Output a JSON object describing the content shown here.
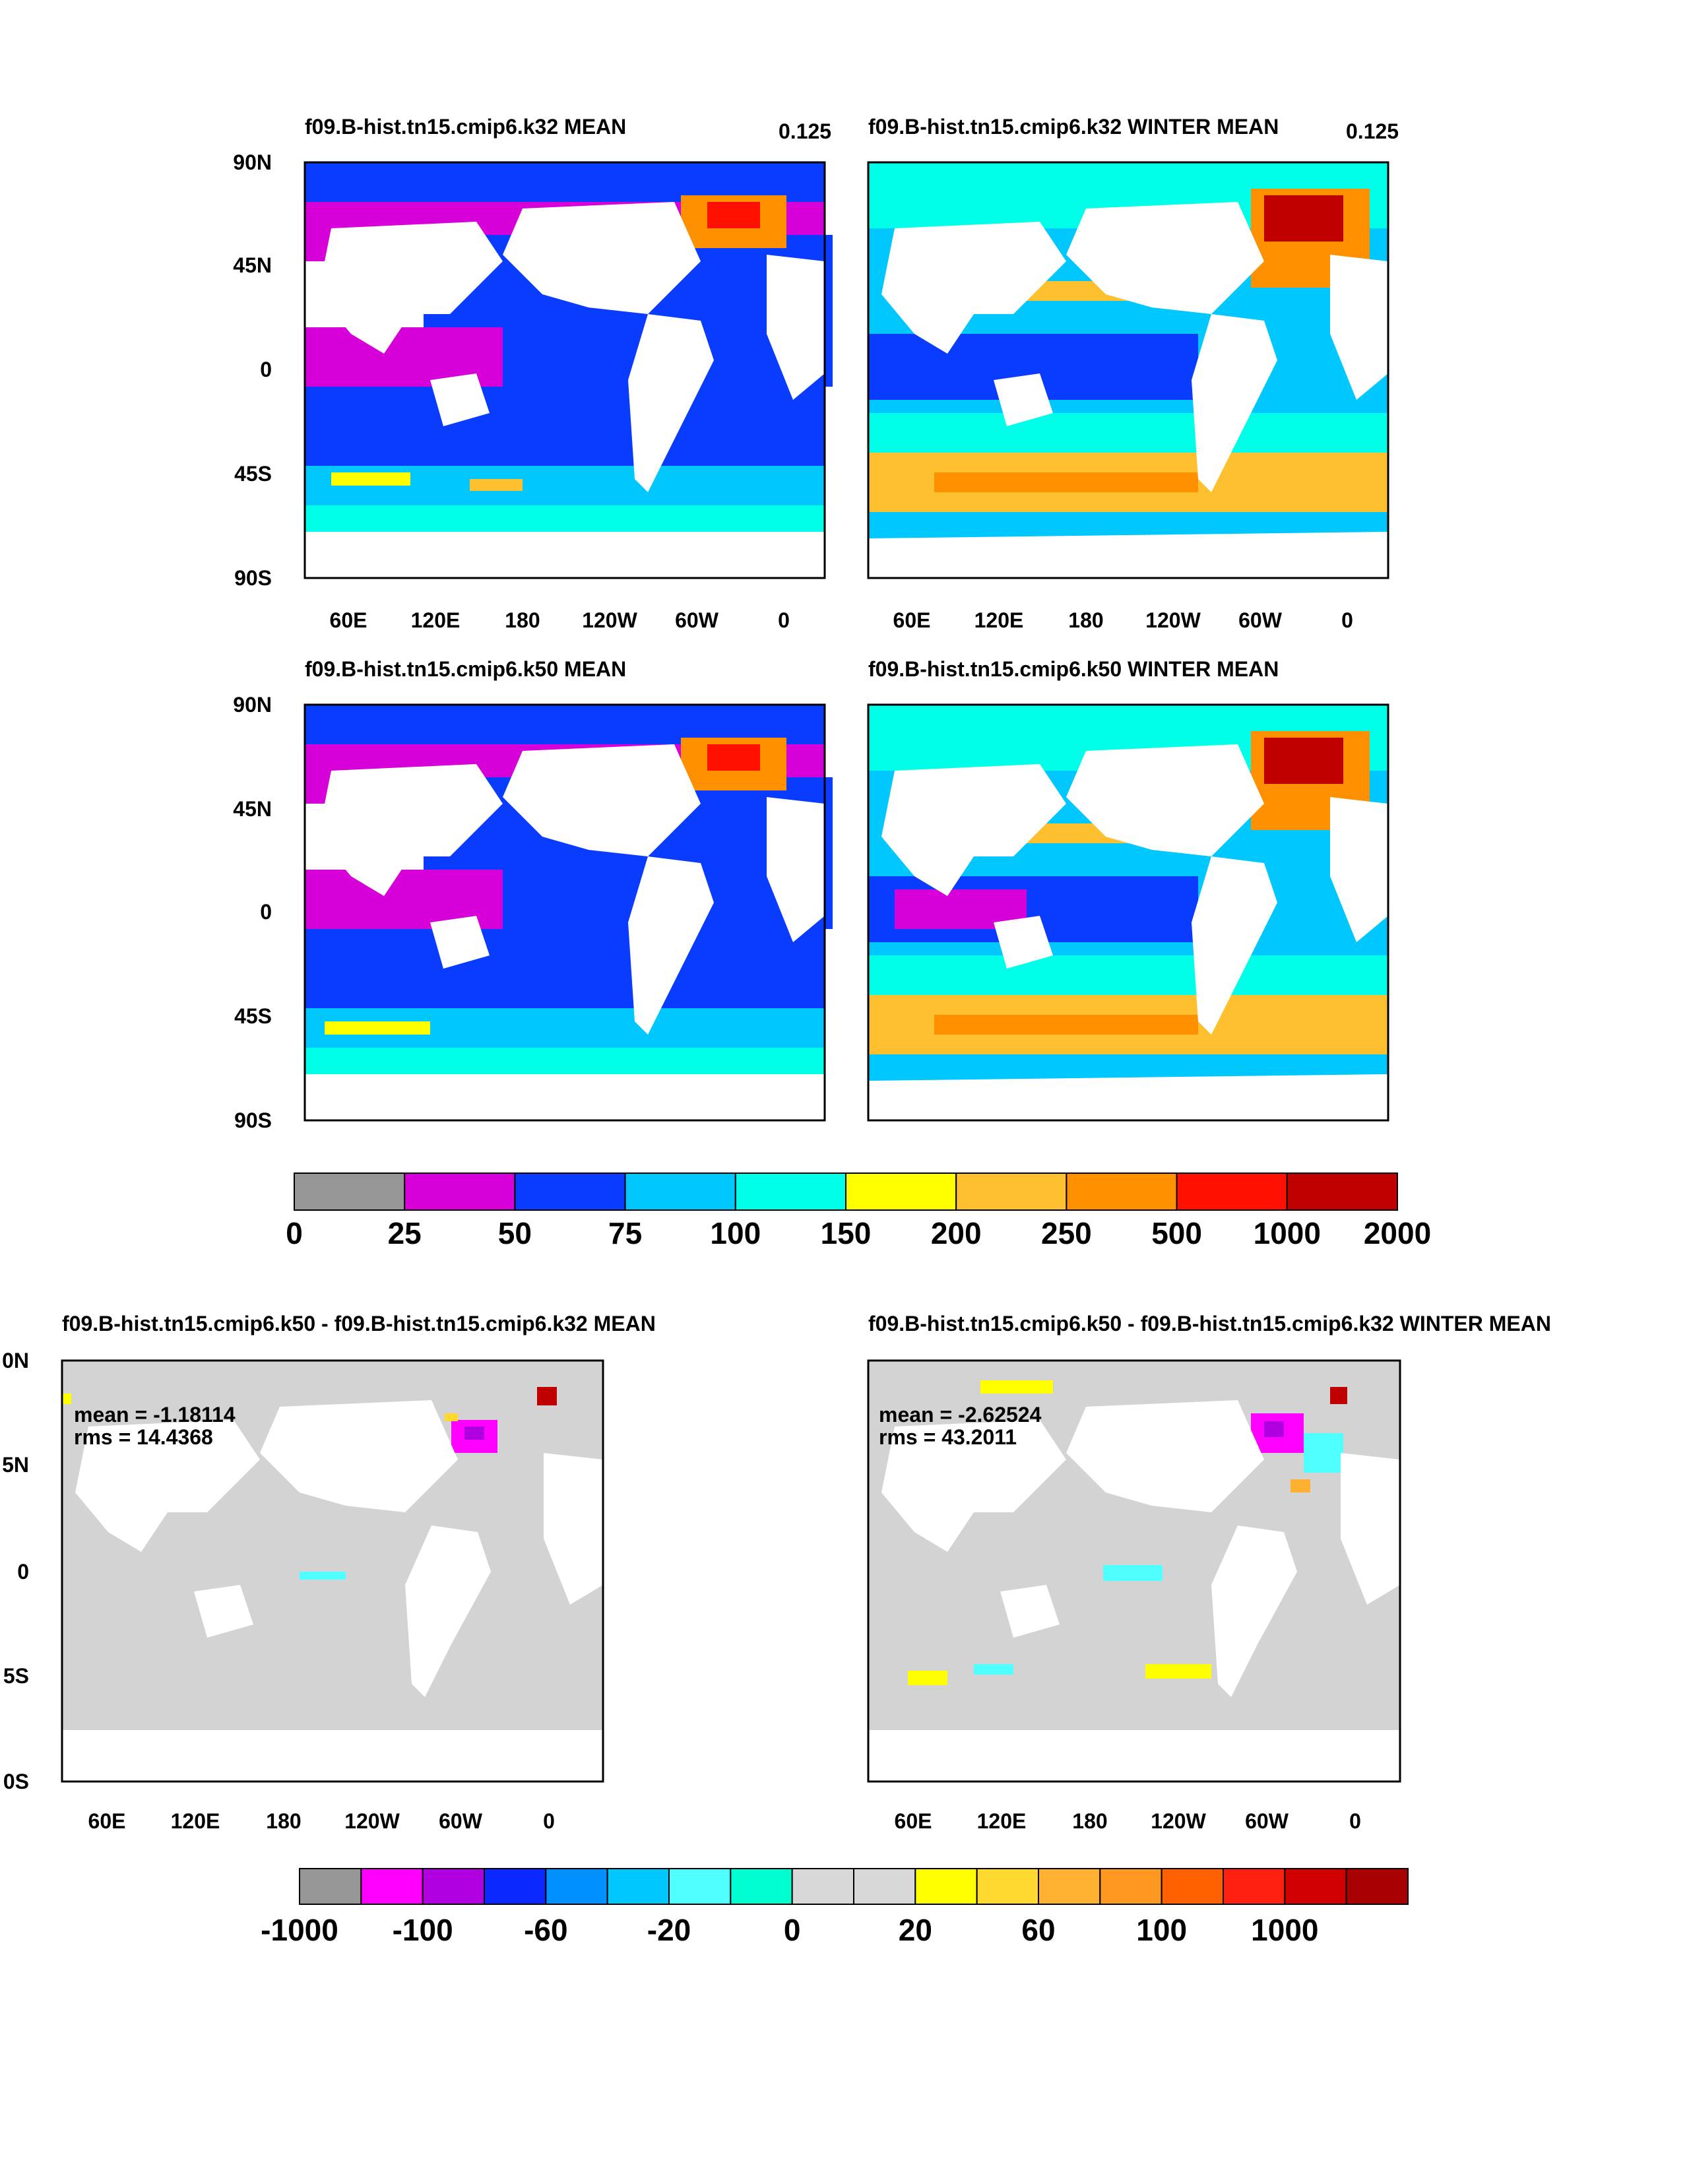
{
  "panels": [
    {
      "id": "p1",
      "title": "f09.B-hist.tn15.cmip6.k32 MEAN",
      "value": "0.125",
      "ylabels": [
        "90N",
        "45N",
        "0",
        "45S",
        "90S"
      ],
      "xlabels": [
        "60E",
        "120E",
        "180",
        "120W",
        "60W",
        "0"
      ]
    },
    {
      "id": "p2",
      "title": "f09.B-hist.tn15.cmip6.k32 WINTER MEAN",
      "value": "0.125",
      "ylabels": [],
      "xlabels": [
        "60E",
        "120E",
        "180",
        "120W",
        "60W",
        "0"
      ]
    },
    {
      "id": "p3",
      "title": "f09.B-hist.tn15.cmip6.k50 MEAN",
      "value": "",
      "ylabels": [
        "90N",
        "45N",
        "0",
        "45S",
        "90S"
      ],
      "xlabels": []
    },
    {
      "id": "p4",
      "title": "f09.B-hist.tn15.cmip6.k50 WINTER MEAN",
      "value": "",
      "ylabels": [],
      "xlabels": []
    },
    {
      "id": "p5",
      "title": "f09.B-hist.tn15.cmip6.k50 - f09.B-hist.tn15.cmip6.k32 MEAN",
      "value": "",
      "stats": {
        "mean": "mean = -1.18114",
        "rms": "rms = 14.4368"
      },
      "ylabels": [
        "0N",
        "5N",
        "0",
        "5S",
        "0S"
      ],
      "xlabels": [
        "60E",
        "120E",
        "180",
        "120W",
        "60W",
        "0"
      ]
    },
    {
      "id": "p6",
      "title": "f09.B-hist.tn15.cmip6.k50 - f09.B-hist.tn15.cmip6.k32 WINTER MEAN",
      "value": "",
      "stats": {
        "mean": "mean = -2.62524",
        "rms": "rms = 43.2011"
      },
      "ylabels": [],
      "xlabels": [
        "60E",
        "120E",
        "180",
        "120W",
        "60W",
        "0"
      ]
    }
  ],
  "colorbars": {
    "top": {
      "colors": [
        "#969696",
        "#d800d8",
        "#0a3cff",
        "#00c8ff",
        "#00ffe8",
        "#ffff00",
        "#ffc030",
        "#ff9000",
        "#ff1000",
        "#c00000"
      ],
      "labels": [
        "0",
        "25",
        "50",
        "75",
        "100",
        "150",
        "200",
        "250",
        "500",
        "1000",
        "2000"
      ]
    },
    "bottom": {
      "colors": [
        "#969696",
        "#ff00ff",
        "#b000e0",
        "#0a28ff",
        "#0090ff",
        "#00c8ff",
        "#50ffff",
        "#00ffd0",
        "#d8d8d8",
        "#d8d8d8",
        "#ffff00",
        "#ffd830",
        "#ffb030",
        "#ff9820",
        "#ff6000",
        "#ff2010",
        "#d00000",
        "#a80000"
      ],
      "labels": [
        "-1000",
        "-100",
        "-60",
        "-20",
        "0",
        "20",
        "60",
        "100",
        "1000"
      ]
    }
  }
}
